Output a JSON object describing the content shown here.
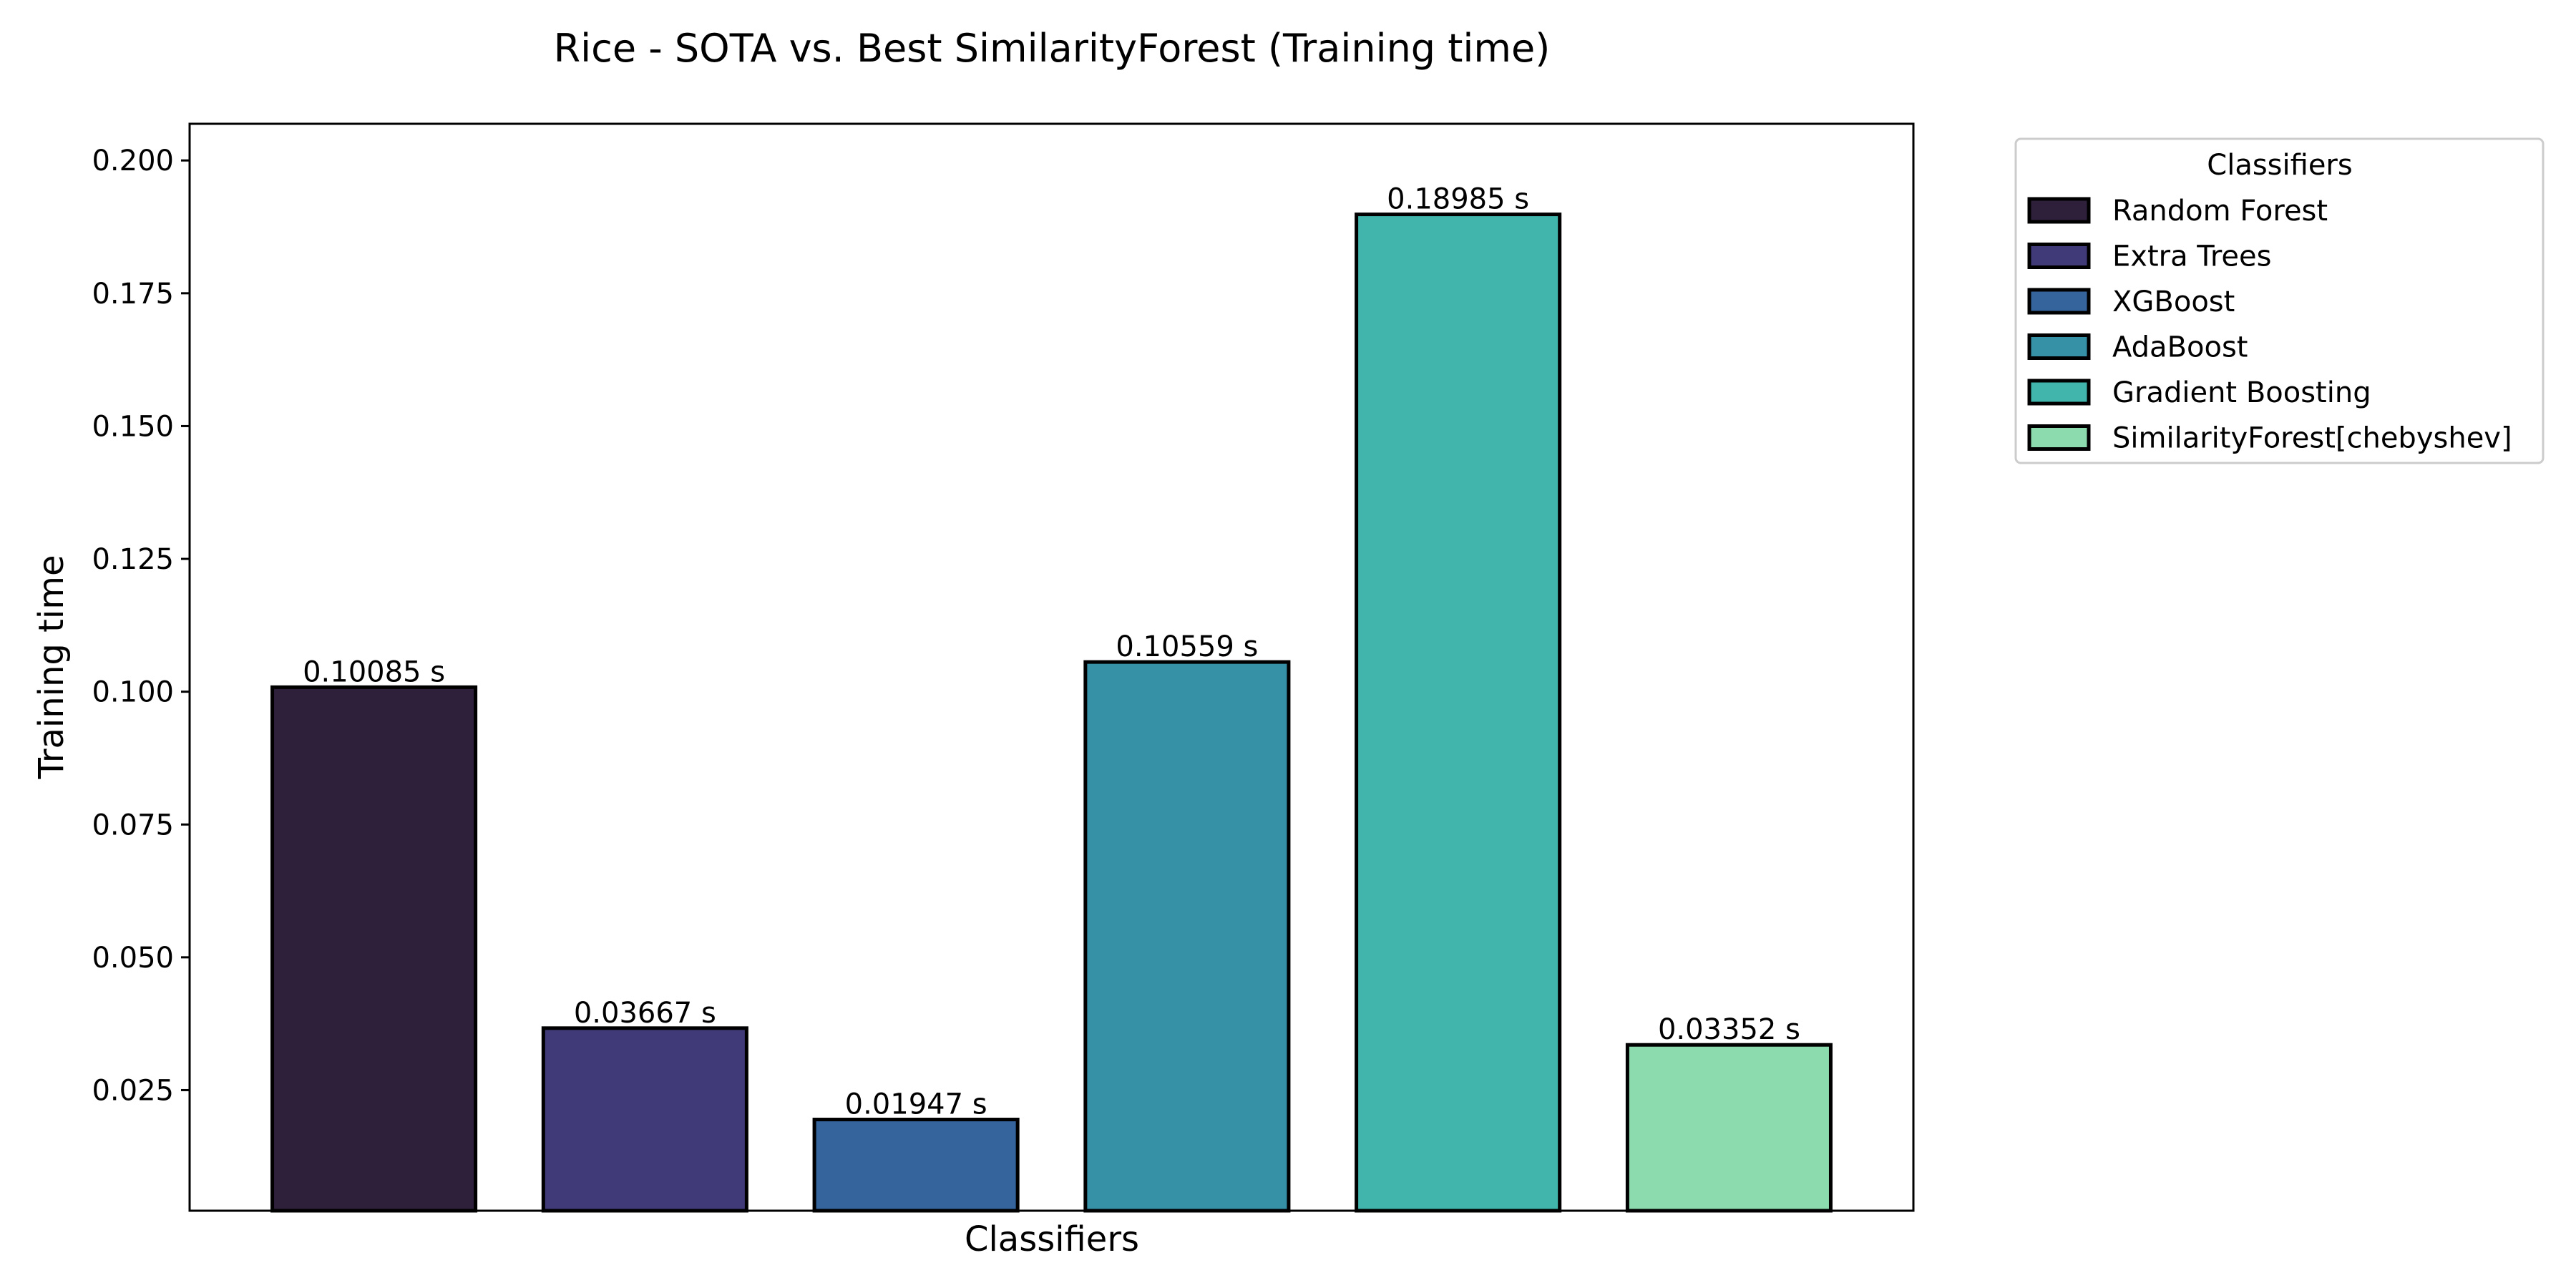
{
  "chart_data": {
    "type": "bar",
    "title": "Rice - SOTA vs. Best SimilarityForest (Training time)",
    "xlabel": "Classifiers",
    "ylabel": "Training time",
    "ylim": [
      0.0023,
      0.2069
    ],
    "yticks": [
      0.025,
      0.05,
      0.075,
      0.1,
      0.125,
      0.15,
      0.175,
      0.2
    ],
    "ytick_labels": [
      "0.025",
      "0.050",
      "0.075",
      "0.100",
      "0.125",
      "0.150",
      "0.175",
      "0.200"
    ],
    "grid": false,
    "legend_placement": "outside-top-right",
    "legend_title": "Classifiers",
    "categories": [
      "Random Forest",
      "Extra Trees",
      "XGBoost",
      "AdaBoost",
      "Gradient Boosting",
      "SimilarityForest[chebyshev]"
    ],
    "values": [
      0.10085,
      0.03667,
      0.01947,
      0.10559,
      0.18985,
      0.03352
    ],
    "value_labels": [
      "0.10085 s",
      "0.03667 s",
      "0.01947 s",
      "0.10559 s",
      "0.18985 s",
      "0.03352 s"
    ],
    "colors": [
      "#2e1f3a",
      "#403b78",
      "#35649c",
      "#3690a6",
      "#41b5ab",
      "#8cdbae"
    ],
    "edge_color": "#000000"
  }
}
